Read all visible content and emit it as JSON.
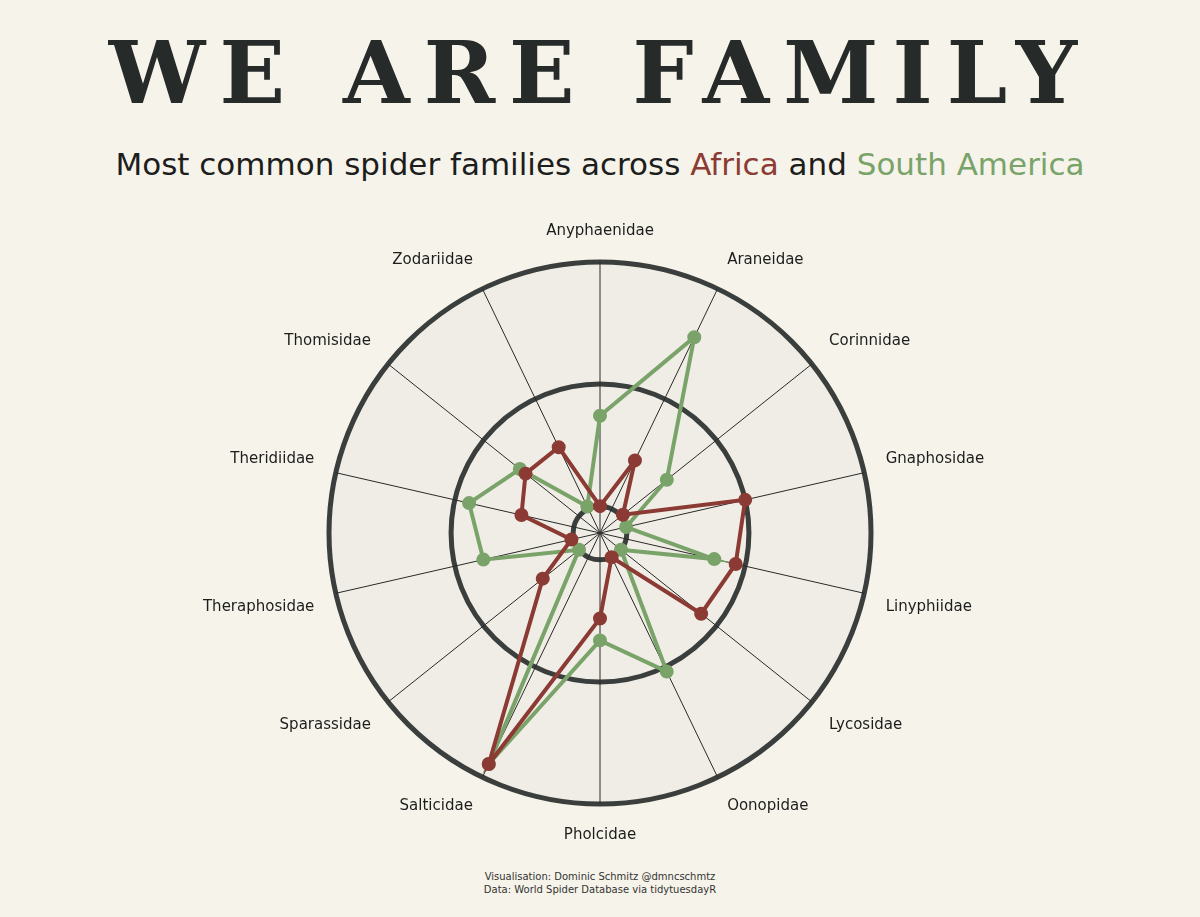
{
  "chart_data": {
    "type": "radar",
    "title": "WE ARE FAMILY",
    "subtitle": "Most common spider families across Africa and South America",
    "caption": [
      "Visualisation: Dominic Schmitz @dmncschmtz",
      "Data: World Spider Database via tidytuesdayR"
    ],
    "categories": [
      "Anyphaenidae",
      "Araneidae",
      "Corinnidae",
      "Gnaphosidae",
      "Linyphiidae",
      "Lycosidae",
      "Oonopidae",
      "Pholcidae",
      "Salticidae",
      "Sparassidae",
      "Theraphosidae",
      "Theridiidae",
      "Thomisidae",
      "Zodariidae"
    ],
    "series": [
      {
        "name": "Africa",
        "color": "#8b3a34",
        "values": [
          0,
          0.22,
          0.01,
          0.5,
          0.46,
          0.42,
          0,
          0.24,
          0.94,
          0.19,
          0.01,
          0.22,
          0.28,
          0.28
        ]
      },
      {
        "name": "South America",
        "color": "#7aa36a",
        "values": [
          0.37,
          0.78,
          0.24,
          0,
          0.37,
          0,
          0.52,
          0.33,
          0.94,
          0,
          0.38,
          0.44,
          0.31,
          0.01
        ]
      }
    ],
    "ylim": [
      -0.11,
      1
    ],
    "yticks": [
      0,
      0.5,
      1
    ],
    "grid": true,
    "tick_labels": false,
    "marker": "circle"
  }
}
